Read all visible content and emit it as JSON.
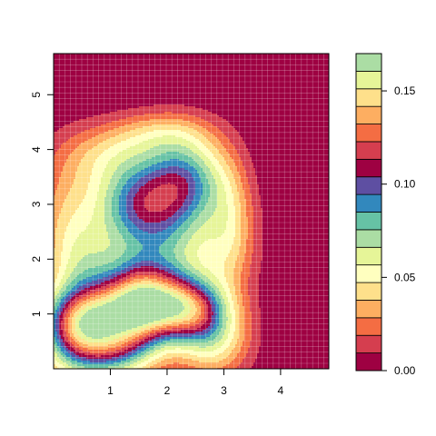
{
  "chart_data": {
    "type": "heatmap",
    "subtype": "filled-contour density",
    "xlim": [
      0.0,
      4.85
    ],
    "ylim": [
      0.0,
      5.75
    ],
    "x_ticks": [
      1,
      2,
      3,
      4
    ],
    "y_ticks": [
      1,
      2,
      3,
      4,
      5
    ],
    "grid": "fine white mesh over plot panel",
    "background_level_color": "#9E0142",
    "peaks": [
      {
        "x": 0.7,
        "y": 0.88,
        "value": 0.165
      },
      {
        "x": 1.55,
        "y": 1.18,
        "value": 0.165
      },
      {
        "x": 2.35,
        "y": 1.1,
        "value": 0.15
      },
      {
        "x": 1.5,
        "y": 3.05,
        "value": 0.088
      },
      {
        "x": 2.35,
        "y": 3.5,
        "value": 0.078
      }
    ],
    "legend": {
      "position": "right",
      "range": [
        0.0,
        0.17
      ],
      "tick_values": [
        0.0,
        0.05,
        0.1,
        0.15
      ],
      "tick_labels": [
        "0.00",
        "0.05",
        "0.10",
        "0.15"
      ],
      "level_colors": [
        "#9E0142",
        "#D53E4F",
        "#F46D43",
        "#FDAE61",
        "#FEE08B",
        "#FFFFBF",
        "#E6F598",
        "#ABDDA4",
        "#66C2A5",
        "#3288BD",
        "#5E4FA2",
        "#9E0142",
        "#D53E4F",
        "#F46D43",
        "#FDAE61",
        "#FEE08B",
        "#E6F598",
        "#ABDDA4"
      ]
    }
  }
}
